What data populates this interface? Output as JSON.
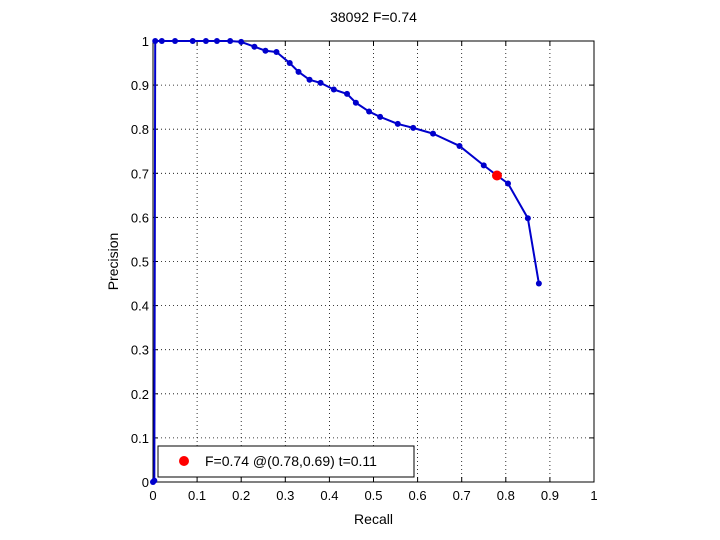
{
  "chart_data": {
    "type": "line",
    "title": "38092 F=0.74",
    "xlabel": "Recall",
    "ylabel": "Precision",
    "xlim": [
      0,
      1
    ],
    "ylim": [
      0,
      1
    ],
    "grid": true,
    "legend_position": "bottom-left",
    "x_ticks": [
      "0",
      "0.1",
      "0.2",
      "0.3",
      "0.4",
      "0.5",
      "0.6",
      "0.7",
      "0.8",
      "0.9",
      "1"
    ],
    "y_ticks": [
      "0",
      "0.1",
      "0.2",
      "0.3",
      "0.4",
      "0.5",
      "0.6",
      "0.7",
      "0.8",
      "0.9",
      "1"
    ],
    "series": [
      {
        "color": "#0000cc",
        "marker": "dot",
        "x": [
          0.0,
          0.003,
          0.005,
          0.02,
          0.05,
          0.09,
          0.12,
          0.145,
          0.175,
          0.2,
          0.23,
          0.255,
          0.28,
          0.31,
          0.33,
          0.355,
          0.38,
          0.41,
          0.44,
          0.46,
          0.49,
          0.515,
          0.555,
          0.59,
          0.635,
          0.695,
          0.75,
          0.78,
          0.805,
          0.85,
          0.875
        ],
        "y": [
          0.0,
          0.003,
          1.0,
          1.0,
          1.0,
          1.0,
          1.0,
          1.0,
          1.0,
          0.998,
          0.987,
          0.978,
          0.975,
          0.95,
          0.93,
          0.912,
          0.905,
          0.89,
          0.88,
          0.86,
          0.84,
          0.828,
          0.812,
          0.803,
          0.79,
          0.762,
          0.718,
          0.695,
          0.677,
          0.598,
          0.45
        ]
      }
    ],
    "highlight_point": {
      "x": 0.78,
      "y": 0.695,
      "color": "#ff0000",
      "label": "F=0.74 @(0.78,0.69) t=0.11"
    }
  }
}
